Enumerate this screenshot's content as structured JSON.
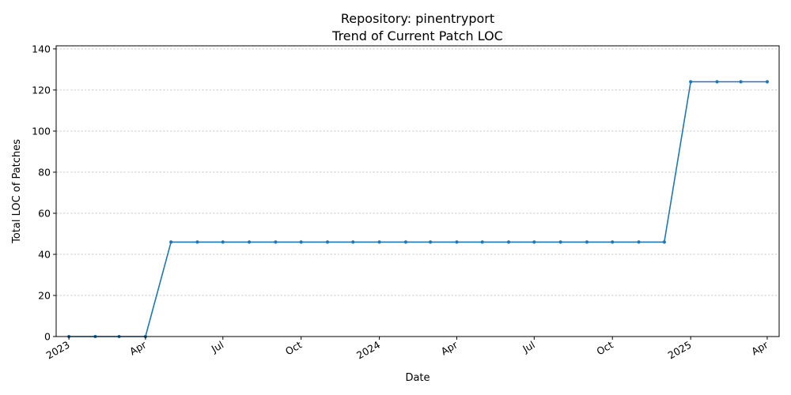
{
  "chart_data": {
    "type": "line",
    "title_line1": "Repository: pinentryport",
    "title_line2": "Trend of Current Patch LOC",
    "xlabel": "Date",
    "ylabel": "Total LOC of Patches",
    "ylim": [
      0,
      141.5
    ],
    "yticks": [
      0,
      20,
      40,
      60,
      80,
      100,
      120,
      140
    ],
    "xlim": [
      "2022-12-17",
      "2025-04-15"
    ],
    "xticks": [
      {
        "date": "2023-01-01",
        "label": "2023"
      },
      {
        "date": "2023-04-01",
        "label": "Apr"
      },
      {
        "date": "2023-07-01",
        "label": "Jul"
      },
      {
        "date": "2023-10-01",
        "label": "Oct"
      },
      {
        "date": "2024-01-01",
        "label": "2024"
      },
      {
        "date": "2024-04-01",
        "label": "Apr"
      },
      {
        "date": "2024-07-01",
        "label": "Jul"
      },
      {
        "date": "2024-10-01",
        "label": "Oct"
      },
      {
        "date": "2025-01-01",
        "label": "2025"
      },
      {
        "date": "2025-04-01",
        "label": "Apr"
      }
    ],
    "grid": "y-dashed",
    "color": "#1f77b4",
    "series": [
      {
        "x": [
          "2023-01-01",
          "2023-02-01",
          "2023-03-01",
          "2023-04-01",
          "2023-05-01",
          "2023-06-01",
          "2023-07-01",
          "2023-08-01",
          "2023-09-01",
          "2023-10-01",
          "2023-11-01",
          "2023-12-01",
          "2024-01-01",
          "2024-02-01",
          "2024-03-01",
          "2024-04-01",
          "2024-05-01",
          "2024-06-01",
          "2024-07-01",
          "2024-08-01",
          "2024-09-01",
          "2024-10-01",
          "2024-11-01",
          "2024-12-01",
          "2025-01-01",
          "2025-02-01",
          "2025-03-01",
          "2025-04-01"
        ],
        "values": [
          0,
          0,
          0,
          0,
          46,
          46,
          46,
          46,
          46,
          46,
          46,
          46,
          46,
          46,
          46,
          46,
          46,
          46,
          46,
          46,
          46,
          46,
          46,
          46,
          124,
          124,
          124,
          124
        ]
      }
    ]
  }
}
